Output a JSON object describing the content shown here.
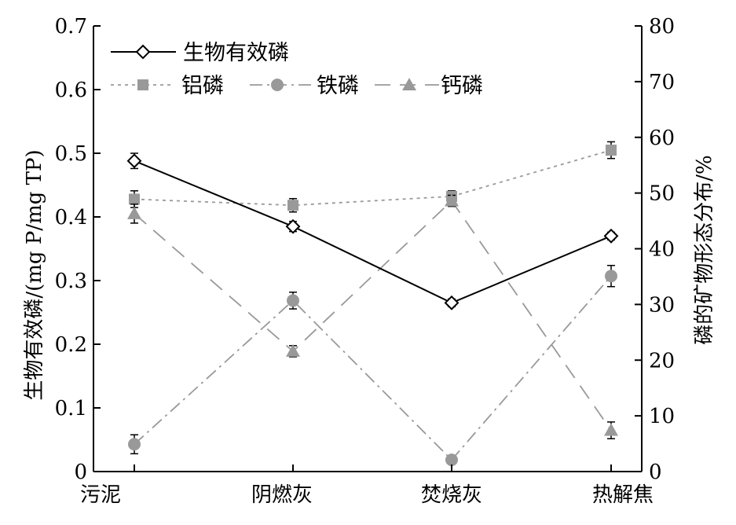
{
  "chart_data": {
    "type": "line",
    "categories": [
      "污泥",
      "阴燃灰",
      "焚烧灰",
      "热解焦"
    ],
    "left_axis": {
      "label": "生物有效磷/(mg P/mg TP)",
      "ylim": [
        0,
        0.7
      ],
      "ticks": [
        0,
        0.1,
        0.2,
        0.3,
        0.4,
        0.5,
        0.6,
        0.7
      ],
      "tick_labels": [
        "0",
        "0.1",
        "0.2",
        "0.3",
        "0.4",
        "0.5",
        "0.6",
        "0.7"
      ]
    },
    "right_axis": {
      "label": "磷的矿物形态分布/%",
      "ylim": [
        0,
        80
      ],
      "ticks": [
        0,
        10,
        20,
        30,
        40,
        50,
        60,
        70,
        80
      ],
      "tick_labels": [
        "0",
        "10",
        "20",
        "30",
        "40",
        "50",
        "60",
        "70",
        "80"
      ]
    },
    "series": [
      {
        "name": "生物有效磷",
        "axis": "left",
        "values": [
          0.488,
          0.385,
          0.265,
          0.37
        ],
        "errors": [
          0.012,
          0.008,
          0.006,
          0.006
        ],
        "color": "#000000",
        "marker": "diamond-open",
        "line": "solid"
      },
      {
        "name": "铝磷",
        "axis": "right",
        "values": [
          48.9,
          47.8,
          49.4,
          57.7
        ],
        "errors": [
          1.5,
          1.2,
          1.0,
          1.5
        ],
        "color": "#999999",
        "marker": "square",
        "line": "dotted"
      },
      {
        "name": "铁磷",
        "axis": "right",
        "values": [
          4.9,
          30.7,
          2.1,
          35.1
        ],
        "errors": [
          1.7,
          1.5,
          0.6,
          1.9
        ],
        "color": "#999999",
        "marker": "circle",
        "line": "dash-dot"
      },
      {
        "name": "钙磷",
        "axis": "right",
        "values": [
          46.3,
          21.6,
          48.6,
          7.4
        ],
        "errors": [
          1.7,
          1.0,
          1.0,
          1.5
        ],
        "color": "#999999",
        "marker": "triangle",
        "line": "dashed"
      }
    ],
    "legend": "top-left",
    "grid": false
  }
}
